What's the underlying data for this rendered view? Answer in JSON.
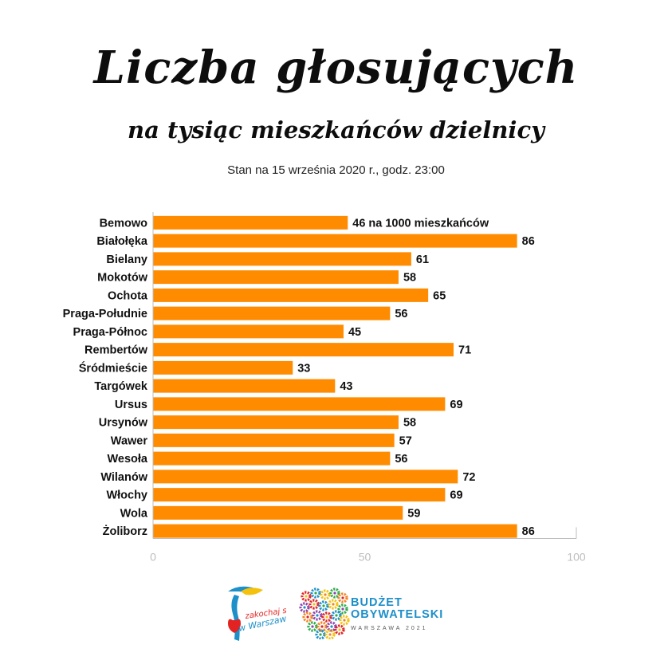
{
  "header": {
    "title": "Liczba głosujących",
    "subtitle": "na tysiąc mieszkańców dzielnicy",
    "stan": "Stan na 15 września 2020 r., godz. 23:00"
  },
  "colors": {
    "bar": "#ff8c00",
    "axis": "#bdbdbd",
    "text": "#111111"
  },
  "chart_data": {
    "type": "bar",
    "orientation": "horizontal",
    "categories": [
      "Bemowo",
      "Białołęka",
      "Bielany",
      "Mokotów",
      "Ochota",
      "Praga-Południe",
      "Praga-Północ",
      "Rembertów",
      "Śródmieście",
      "Targówek",
      "Ursus",
      "Ursynów",
      "Wawer",
      "Wesoła",
      "Wilanów",
      "Włochy",
      "Wola",
      "Żoliborz"
    ],
    "values": [
      46,
      86,
      61,
      58,
      65,
      56,
      45,
      71,
      33,
      43,
      69,
      58,
      57,
      56,
      72,
      69,
      59,
      86
    ],
    "value_labels": [
      "46 na 1000 mieszkańców",
      "86",
      "61",
      "58",
      "65",
      "56",
      "45",
      "71",
      "33",
      "43",
      "69",
      "58",
      "57",
      "56",
      "72",
      "69",
      "59",
      "86"
    ],
    "xlim": [
      0,
      100
    ],
    "xticks": [
      "0",
      "50",
      "100"
    ],
    "grid": false
  },
  "logos": {
    "left_text": "zakochaj się w Warszawie",
    "right_title_line1": "BUDŻET",
    "right_title_line2": "OBYWATELSKI",
    "right_sub": "WARSZAWA 2021"
  }
}
